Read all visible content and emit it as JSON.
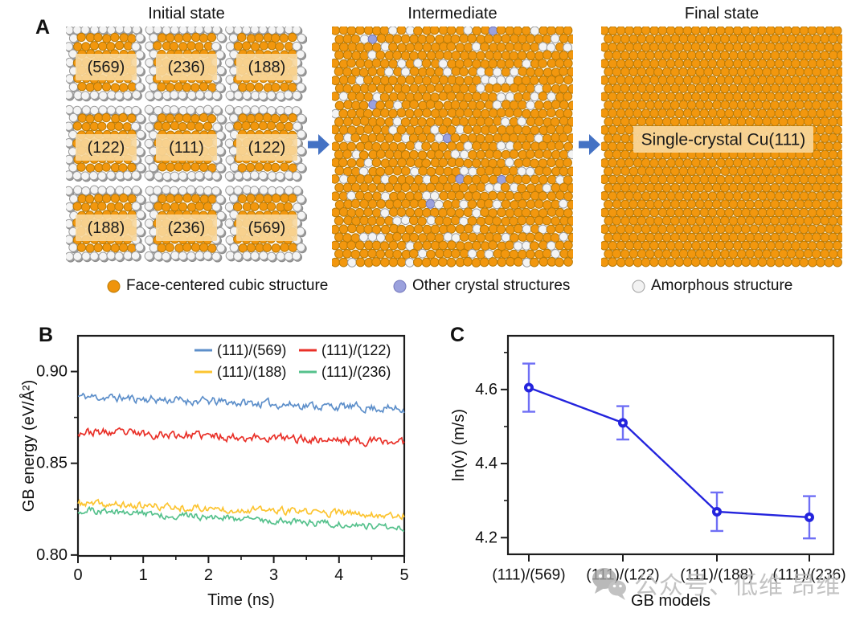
{
  "panel_a": {
    "label": "A",
    "states": [
      {
        "title": "Initial state",
        "type": "polycrystal",
        "grain_labels": [
          [
            "(569)",
            "(236)",
            "(188)"
          ],
          [
            "(122)",
            "(111)",
            "(122)"
          ],
          [
            "(188)",
            "(236)",
            "(569)"
          ]
        ]
      },
      {
        "title": "Intermediate",
        "type": "mixed"
      },
      {
        "title": "Final state",
        "type": "single_crystal",
        "center_label": "Single-crystal Cu(111)"
      }
    ],
    "atom_colors": {
      "fcc": "#f2970e",
      "fcc_stroke": "#b97a06",
      "amorphous": "#f4f4f4",
      "amorphous_stroke": "#9d9d9d",
      "other": "#9ba1dd",
      "other_stroke": "#7276bb",
      "label_chip": "#f8d79b"
    },
    "legend": [
      {
        "label": "Face-centered cubic structure",
        "color": "#ef940c",
        "stroke": "#b97a06"
      },
      {
        "label": "Other crystal structures",
        "color": "#9ba1dd",
        "stroke": "#7276bb"
      },
      {
        "label": "Amorphous structure",
        "color": "#f2f2f2",
        "stroke": "#9d9d9d"
      }
    ],
    "arrow_color": "#4472c4"
  },
  "panel_b": {
    "label": "B"
  },
  "panel_c": {
    "label": "C"
  },
  "chart_data": [
    {
      "id": "B",
      "type": "line",
      "title": "",
      "xlabel": "Time (ns)",
      "ylabel": "GB energy (eV/Å²)",
      "xlim": [
        0,
        5
      ],
      "ylim": [
        0.7995,
        0.9195
      ],
      "xticks": [
        0,
        1,
        2,
        3,
        4,
        5
      ],
      "x_minor_ticks": [
        0.5,
        1.5,
        2.5,
        3.5,
        4.5
      ],
      "yticks": [
        0.8,
        0.85,
        0.9
      ],
      "ytick_labels": [
        "0.80",
        "0.85",
        "0.90"
      ],
      "y_minor_ticks": [
        0.825,
        0.875
      ],
      "grid": false,
      "legend_position": "top-right-inside",
      "points_per_series": 260,
      "series": [
        {
          "name": "(111)/(569)",
          "color": "#5d8fca",
          "y_start": 0.8865,
          "y_end": 0.8795,
          "noise_amplitude": 0.0017,
          "seed": 11
        },
        {
          "name": "(111)/(122)",
          "color": "#e93028",
          "y_start": 0.8672,
          "y_end": 0.8615,
          "noise_amplitude": 0.0017,
          "seed": 23
        },
        {
          "name": "(111)/(188)",
          "color": "#fcc430",
          "y_start": 0.828,
          "y_end": 0.8215,
          "noise_amplitude": 0.0015,
          "seed": 37
        },
        {
          "name": "(111)/(236)",
          "color": "#55c18c",
          "y_start": 0.8245,
          "y_end": 0.815,
          "noise_amplitude": 0.0014,
          "seed": 51
        }
      ]
    },
    {
      "id": "C",
      "type": "line_errorbar",
      "title": "",
      "xlabel": "GB models",
      "ylabel": "ln(v) (m/s)",
      "categories": [
        "(111)/(569)",
        "(111)/(122)",
        "(111)/(188)",
        "(111)/(236)"
      ],
      "values": [
        4.605,
        4.51,
        4.27,
        4.255
      ],
      "errors": [
        0.065,
        0.045,
        0.052,
        0.057
      ],
      "ylim": [
        4.155,
        4.745
      ],
      "yticks": [
        4.2,
        4.4,
        4.6
      ],
      "ytick_labels": [
        "4.2",
        "4.4",
        "4.6"
      ],
      "y_minor_ticks": [
        4.3,
        4.5,
        4.7
      ],
      "grid": false,
      "line_color": "#2424dd",
      "errorbar_color": "#6f6ff5",
      "marker": "circle-dot"
    }
  ],
  "watermark": {
    "icon": "wechat-icon",
    "text": "公众号、低维 昂维"
  }
}
